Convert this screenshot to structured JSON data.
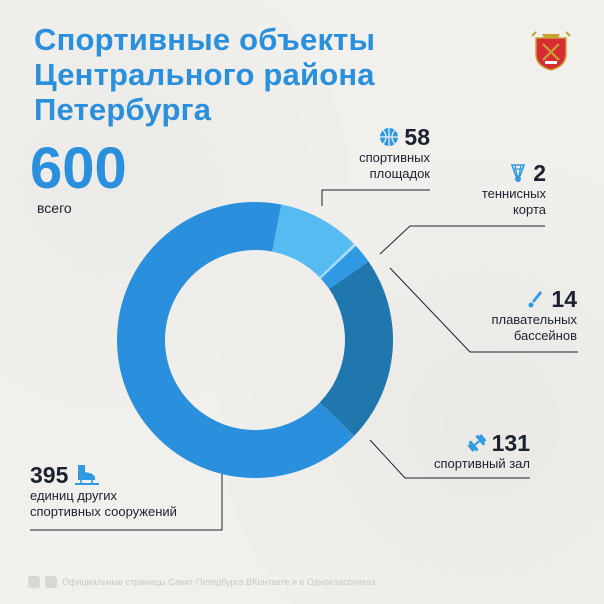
{
  "title_lines": [
    "Спортивные объекты",
    "Центрального района",
    "Петербурга"
  ],
  "total": {
    "value": "600",
    "label": "всего"
  },
  "colors": {
    "title": "#2a8fdc",
    "sports_grounds": "#55bbf0",
    "tennis": "#a8dcf8",
    "pools": "#2f9ae3",
    "gym": "#1f77ad",
    "other": "#2a8fdc"
  },
  "labels": {
    "sports_grounds": {
      "value": "58",
      "text": [
        "спортивных",
        "площадок"
      ],
      "icon": "basketball-icon"
    },
    "tennis": {
      "value": "2",
      "text": [
        "теннисных",
        "корта"
      ],
      "icon": "shuttlecock-icon"
    },
    "pools": {
      "value": "14",
      "text": [
        "плавательных",
        "бассейнов"
      ],
      "icon": "swimmer-icon"
    },
    "gym": {
      "value": "131",
      "text": [
        "спортивный зал"
      ],
      "icon": "dumbbell-icon"
    },
    "other": {
      "value": "395",
      "text": [
        "единиц других",
        "спортивных сооружений"
      ],
      "icon": "skate-icon"
    }
  },
  "footer": {
    "text": "Официальные страницы Санкт-Петербурга ВКонтакте и в Одноклассниках"
  },
  "chart_data": {
    "type": "pie",
    "title": "",
    "total": 600,
    "slices": [
      {
        "label": "спортивных площадок",
        "value": 58,
        "color": "#55bbf0"
      },
      {
        "label": "теннисных корта",
        "value": 2,
        "color": "#a8dcf8"
      },
      {
        "label": "плавательных бассейнов",
        "value": 14,
        "color": "#2f9ae3"
      },
      {
        "label": "спортивный зал",
        "value": 131,
        "color": "#1f77ad"
      },
      {
        "label": "единиц других спортивных сооружений",
        "value": 395,
        "color": "#2a8fdc"
      }
    ]
  }
}
